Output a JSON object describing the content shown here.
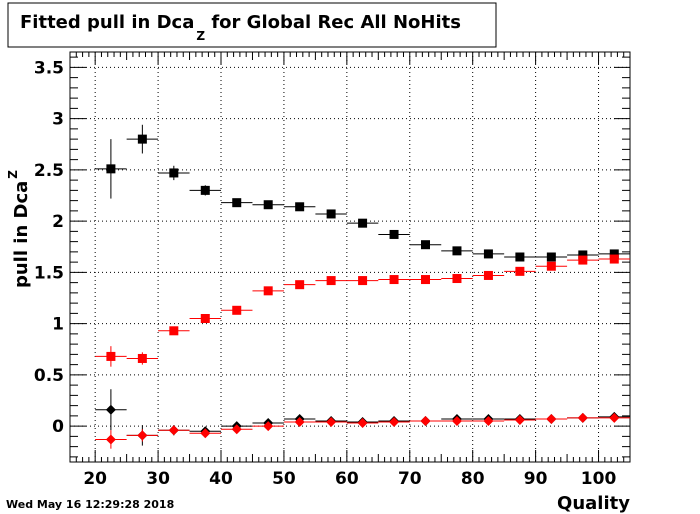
{
  "chart_data": {
    "type": "scatter",
    "title": "Fitted pull in Dca",
    "title_subscript": "Z",
    "title_rest": " for Global Rec All NoHits",
    "xlabel": "Quality",
    "ylabel": "pull in Dca",
    "ylabel_subscript": "Z",
    "xlim": [
      16,
      105
    ],
    "ylim": [
      -0.35,
      3.65
    ],
    "x_ticks": [
      20,
      30,
      40,
      50,
      60,
      70,
      80,
      90,
      100
    ],
    "y_ticks": [
      0,
      0.5,
      1,
      1.5,
      2,
      2.5,
      3,
      3.5
    ],
    "y_tick_labels": [
      "0",
      "0.5",
      "1",
      "1.5",
      "2",
      "2.5",
      "3",
      "3.5"
    ],
    "grid": true,
    "x": [
      22.5,
      27.5,
      32.5,
      37.5,
      42.5,
      47.5,
      52.5,
      57.5,
      62.5,
      67.5,
      72.5,
      77.5,
      82.5,
      87.5,
      92.5,
      97.5,
      102.5
    ],
    "x_err": 2.5,
    "series": [
      {
        "marker": "square",
        "color": "#000000",
        "values": [
          2.51,
          2.8,
          2.47,
          2.3,
          2.18,
          2.16,
          2.14,
          2.07,
          1.98,
          1.87,
          1.77,
          1.71,
          1.68,
          1.65,
          1.65,
          1.67,
          1.68
        ],
        "errors": [
          0.29,
          0.14,
          0.07,
          0.05,
          0.02,
          0.02,
          0.02,
          0.02,
          0.02,
          0.02,
          0.02,
          0.02,
          0.02,
          0.02,
          0.02,
          0.02,
          0.02
        ]
      },
      {
        "marker": "square",
        "color": "#ff0000",
        "values": [
          0.68,
          0.66,
          0.93,
          1.05,
          1.13,
          1.32,
          1.38,
          1.42,
          1.42,
          1.43,
          1.43,
          1.44,
          1.47,
          1.51,
          1.56,
          1.62,
          1.63
        ],
        "errors": [
          0.1,
          0.06,
          0.04,
          0.02,
          0.02,
          0.02,
          0.02,
          0.02,
          0.02,
          0.02,
          0.02,
          0.02,
          0.02,
          0.02,
          0.02,
          0.02,
          0.02
        ]
      },
      {
        "marker": "diamond",
        "color": "#000000",
        "values": [
          0.16,
          -0.09,
          -0.04,
          -0.05,
          0.0,
          0.03,
          0.07,
          0.05,
          0.04,
          0.05,
          0.05,
          0.07,
          0.07,
          0.07,
          0.07,
          0.08,
          0.09
        ],
        "errors": [
          0.2,
          0.1,
          0.05,
          0.04,
          0.02,
          0.02,
          0.02,
          0.02,
          0.02,
          0.02,
          0.02,
          0.02,
          0.02,
          0.02,
          0.02,
          0.02,
          0.02
        ]
      },
      {
        "marker": "diamond",
        "color": "#ff0000",
        "values": [
          -0.13,
          -0.09,
          -0.04,
          -0.07,
          -0.03,
          0.0,
          0.04,
          0.04,
          0.03,
          0.04,
          0.05,
          0.05,
          0.05,
          0.06,
          0.07,
          0.08,
          0.08
        ],
        "errors": [
          0.09,
          0.06,
          0.04,
          0.03,
          0.02,
          0.02,
          0.02,
          0.02,
          0.02,
          0.02,
          0.02,
          0.02,
          0.02,
          0.02,
          0.02,
          0.02,
          0.02
        ]
      }
    ]
  },
  "footer": {
    "timestamp": "Wed May 16 12:29:28 2018"
  }
}
